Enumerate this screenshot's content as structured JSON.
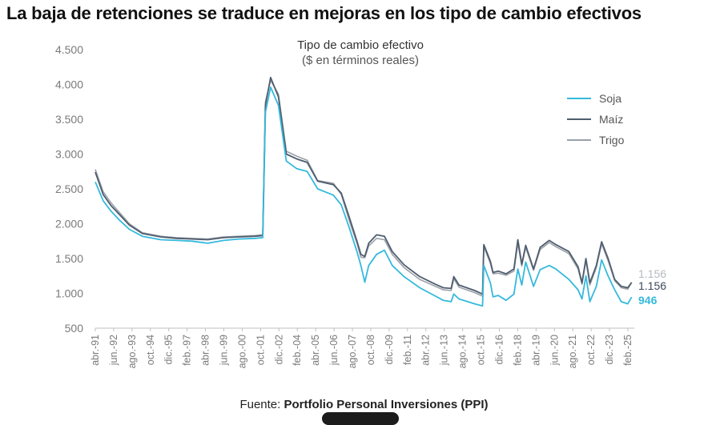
{
  "headline": "La baja de retenciones se traduce en mejoras en los tipo de cambio efectivos",
  "source": {
    "prefix": "Fuente: ",
    "name": "Portfolio Personal Inversiones (PPI)"
  },
  "chart_data": {
    "type": "line",
    "title": "Tipo de cambio efectivo",
    "subtitle": "($ en términos reales)",
    "xlabel": "",
    "ylabel": "",
    "x_range": [
      "1991-04",
      "2025-08"
    ],
    "ylim": [
      500,
      4500
    ],
    "yticks": [
      500,
      1000,
      1500,
      2000,
      2500,
      3000,
      3500,
      4000,
      4500
    ],
    "ytick_labels": [
      "500",
      "1.000",
      "1.500",
      "2.000",
      "2.500",
      "3.000",
      "3.500",
      "4.000",
      "4.500"
    ],
    "xtick_labels": [
      "abr.-91",
      "jun.-92",
      "ago.-93",
      "oct.-94",
      "dic.-95",
      "feb.-97",
      "abr.-98",
      "jun.-99",
      "ago.-00",
      "oct.-01",
      "dic.-02",
      "feb.-04",
      "abr.-05",
      "jun.-06",
      "ago.-07",
      "oct.-08",
      "dic.-09",
      "feb.-11",
      "abr.-12",
      "jun.-13",
      "ago.-14",
      "oct.-15",
      "dic.-16",
      "feb.-18",
      "abr.-19",
      "jun.-20",
      "ago.-21",
      "oct.-22",
      "dic.-23",
      "feb.-25"
    ],
    "grid": false,
    "legend": "top-right",
    "series": [
      {
        "name": "Soja",
        "color": "#35b9dc",
        "end_label": "946",
        "points": [
          [
            "1991-04",
            2600
          ],
          [
            "1991-10",
            2330
          ],
          [
            "1992-04",
            2180
          ],
          [
            "1992-10",
            2060
          ],
          [
            "1993-06",
            1920
          ],
          [
            "1994-04",
            1820
          ],
          [
            "1995-06",
            1770
          ],
          [
            "1996-06",
            1760
          ],
          [
            "1997-06",
            1750
          ],
          [
            "1998-06",
            1720
          ],
          [
            "1999-06",
            1760
          ],
          [
            "2000-06",
            1780
          ],
          [
            "2001-06",
            1790
          ],
          [
            "2001-12",
            1800
          ],
          [
            "2002-02",
            3600
          ],
          [
            "2002-06",
            3960
          ],
          [
            "2002-12",
            3700
          ],
          [
            "2003-06",
            2900
          ],
          [
            "2004-02",
            2790
          ],
          [
            "2004-10",
            2750
          ],
          [
            "2005-06",
            2500
          ],
          [
            "2006-06",
            2410
          ],
          [
            "2006-12",
            2270
          ],
          [
            "2007-06",
            1950
          ],
          [
            "2007-12",
            1600
          ],
          [
            "2008-03",
            1400
          ],
          [
            "2008-06",
            1160
          ],
          [
            "2008-09",
            1400
          ],
          [
            "2009-03",
            1560
          ],
          [
            "2009-09",
            1620
          ],
          [
            "2010-03",
            1400
          ],
          [
            "2010-12",
            1240
          ],
          [
            "2011-12",
            1080
          ],
          [
            "2012-12",
            960
          ],
          [
            "2013-06",
            900
          ],
          [
            "2013-12",
            880
          ],
          [
            "2014-02",
            990
          ],
          [
            "2014-06",
            920
          ],
          [
            "2015-06",
            850
          ],
          [
            "2015-12",
            820
          ],
          [
            "2016-01",
            1400
          ],
          [
            "2016-06",
            1150
          ],
          [
            "2016-08",
            950
          ],
          [
            "2016-12",
            970
          ],
          [
            "2017-06",
            900
          ],
          [
            "2017-12",
            990
          ],
          [
            "2018-03",
            1350
          ],
          [
            "2018-06",
            1120
          ],
          [
            "2018-09",
            1450
          ],
          [
            "2019-03",
            1100
          ],
          [
            "2019-08",
            1340
          ],
          [
            "2020-03",
            1400
          ],
          [
            "2020-08",
            1350
          ],
          [
            "2021-06",
            1200
          ],
          [
            "2022-01",
            1050
          ],
          [
            "2022-04",
            920
          ],
          [
            "2022-07",
            1250
          ],
          [
            "2022-10",
            880
          ],
          [
            "2023-03",
            1100
          ],
          [
            "2023-07",
            1480
          ],
          [
            "2023-12",
            1250
          ],
          [
            "2024-05",
            1050
          ],
          [
            "2024-10",
            880
          ],
          [
            "2025-03",
            850
          ],
          [
            "2025-06",
            946
          ]
        ]
      },
      {
        "name": "Maíz",
        "color": "#4f5d6f",
        "end_label": "1.156",
        "points": [
          [
            "1991-04",
            2740
          ],
          [
            "1991-10",
            2420
          ],
          [
            "1992-04",
            2260
          ],
          [
            "1992-10",
            2140
          ],
          [
            "1993-06",
            1980
          ],
          [
            "1994-04",
            1860
          ],
          [
            "1995-06",
            1810
          ],
          [
            "1996-06",
            1790
          ],
          [
            "1997-06",
            1780
          ],
          [
            "1998-06",
            1770
          ],
          [
            "1999-06",
            1800
          ],
          [
            "2000-06",
            1810
          ],
          [
            "2001-06",
            1820
          ],
          [
            "2001-12",
            1830
          ],
          [
            "2002-02",
            3700
          ],
          [
            "2002-06",
            4100
          ],
          [
            "2002-12",
            3820
          ],
          [
            "2003-06",
            3000
          ],
          [
            "2004-02",
            2930
          ],
          [
            "2004-10",
            2880
          ],
          [
            "2005-06",
            2610
          ],
          [
            "2006-06",
            2560
          ],
          [
            "2006-12",
            2440
          ],
          [
            "2007-06",
            2100
          ],
          [
            "2007-12",
            1750
          ],
          [
            "2008-03",
            1560
          ],
          [
            "2008-06",
            1530
          ],
          [
            "2008-09",
            1720
          ],
          [
            "2009-03",
            1840
          ],
          [
            "2009-09",
            1820
          ],
          [
            "2010-03",
            1600
          ],
          [
            "2010-12",
            1410
          ],
          [
            "2011-12",
            1240
          ],
          [
            "2012-12",
            1130
          ],
          [
            "2013-06",
            1080
          ],
          [
            "2013-12",
            1070
          ],
          [
            "2014-02",
            1240
          ],
          [
            "2014-06",
            1120
          ],
          [
            "2015-06",
            1040
          ],
          [
            "2015-12",
            990
          ],
          [
            "2016-01",
            1700
          ],
          [
            "2016-06",
            1460
          ],
          [
            "2016-08",
            1300
          ],
          [
            "2016-12",
            1320
          ],
          [
            "2017-06",
            1280
          ],
          [
            "2017-12",
            1350
          ],
          [
            "2018-03",
            1770
          ],
          [
            "2018-06",
            1420
          ],
          [
            "2018-09",
            1690
          ],
          [
            "2019-03",
            1350
          ],
          [
            "2019-08",
            1660
          ],
          [
            "2020-03",
            1760
          ],
          [
            "2020-08",
            1700
          ],
          [
            "2021-06",
            1600
          ],
          [
            "2022-01",
            1380
          ],
          [
            "2022-04",
            1150
          ],
          [
            "2022-07",
            1500
          ],
          [
            "2022-10",
            1150
          ],
          [
            "2023-03",
            1400
          ],
          [
            "2023-07",
            1740
          ],
          [
            "2023-12",
            1500
          ],
          [
            "2024-05",
            1200
          ],
          [
            "2024-10",
            1100
          ],
          [
            "2025-03",
            1080
          ],
          [
            "2025-06",
            1156
          ]
        ]
      },
      {
        "name": "Trigo",
        "color": "#9aa1a8",
        "end_label": "1.156",
        "points": [
          [
            "1991-04",
            2780
          ],
          [
            "1991-10",
            2460
          ],
          [
            "1992-04",
            2300
          ],
          [
            "1992-10",
            2170
          ],
          [
            "1993-06",
            2000
          ],
          [
            "1994-04",
            1870
          ],
          [
            "1995-06",
            1820
          ],
          [
            "1996-06",
            1800
          ],
          [
            "1997-06",
            1790
          ],
          [
            "1998-06",
            1780
          ],
          [
            "1999-06",
            1810
          ],
          [
            "2000-06",
            1820
          ],
          [
            "2001-06",
            1830
          ],
          [
            "2001-12",
            1840
          ],
          [
            "2002-02",
            3750
          ],
          [
            "2002-06",
            4060
          ],
          [
            "2002-12",
            3860
          ],
          [
            "2003-06",
            3040
          ],
          [
            "2004-02",
            2970
          ],
          [
            "2004-10",
            2910
          ],
          [
            "2005-06",
            2620
          ],
          [
            "2006-06",
            2580
          ],
          [
            "2006-12",
            2420
          ],
          [
            "2007-06",
            2050
          ],
          [
            "2007-12",
            1720
          ],
          [
            "2008-03",
            1520
          ],
          [
            "2008-06",
            1510
          ],
          [
            "2008-09",
            1680
          ],
          [
            "2009-03",
            1790
          ],
          [
            "2009-09",
            1770
          ],
          [
            "2010-03",
            1560
          ],
          [
            "2010-12",
            1370
          ],
          [
            "2011-12",
            1200
          ],
          [
            "2012-12",
            1100
          ],
          [
            "2013-06",
            1050
          ],
          [
            "2013-12",
            1040
          ],
          [
            "2014-02",
            1210
          ],
          [
            "2014-06",
            1090
          ],
          [
            "2015-06",
            1010
          ],
          [
            "2015-12",
            960
          ],
          [
            "2016-01",
            1670
          ],
          [
            "2016-06",
            1430
          ],
          [
            "2016-08",
            1280
          ],
          [
            "2016-12",
            1290
          ],
          [
            "2017-06",
            1260
          ],
          [
            "2017-12",
            1320
          ],
          [
            "2018-03",
            1720
          ],
          [
            "2018-06",
            1390
          ],
          [
            "2018-09",
            1660
          ],
          [
            "2019-03",
            1330
          ],
          [
            "2019-08",
            1630
          ],
          [
            "2020-03",
            1730
          ],
          [
            "2020-08",
            1670
          ],
          [
            "2021-06",
            1570
          ],
          [
            "2022-01",
            1350
          ],
          [
            "2022-04",
            1130
          ],
          [
            "2022-07",
            1470
          ],
          [
            "2022-10",
            1120
          ],
          [
            "2023-03",
            1370
          ],
          [
            "2023-07",
            1710
          ],
          [
            "2023-12",
            1470
          ],
          [
            "2024-05",
            1180
          ],
          [
            "2024-10",
            1080
          ],
          [
            "2025-03",
            1060
          ],
          [
            "2025-06",
            1156
          ]
        ]
      }
    ]
  }
}
